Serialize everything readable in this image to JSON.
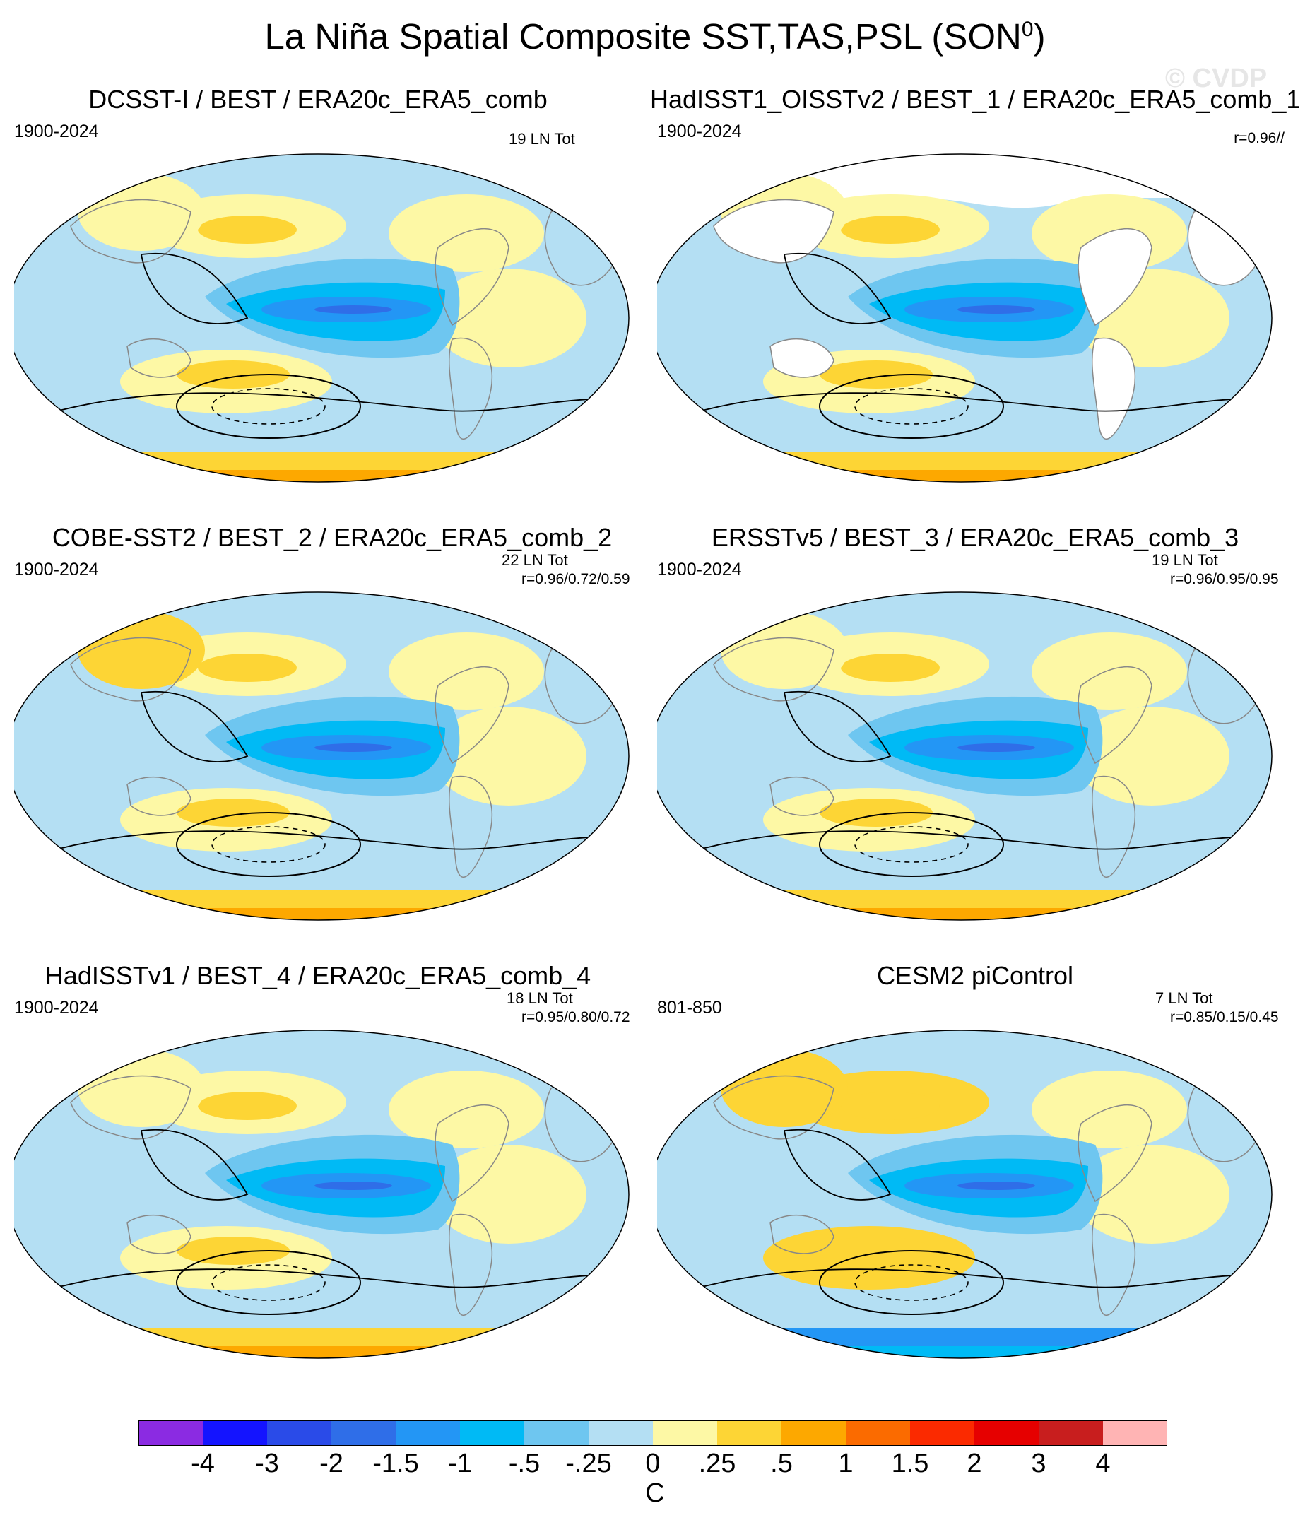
{
  "title": "La Niña Spatial Composite SST,TAS,PSL (SON",
  "title_sup": "0",
  "title_end": ")",
  "watermark": "© CVDP",
  "panels": [
    {
      "title": "DCSST-I / BEST / ERA20c_ERA5_comb",
      "years": "1900-2024",
      "count": "19 LN Tot",
      "r": ""
    },
    {
      "title": "HadISST1_OISSTv2 / BEST_1 / ERA20c_ERA5_comb_1",
      "years": "1900-2024",
      "count": "",
      "r": "r=0.96//"
    },
    {
      "title": "COBE-SST2 / BEST_2 / ERA20c_ERA5_comb_2",
      "years": "1900-2024",
      "count": "22 LN Tot",
      "r": "r=0.96/0.72/0.59"
    },
    {
      "title": "ERSSTv5 / BEST_3 / ERA20c_ERA5_comb_3",
      "years": "1900-2024",
      "count": "19 LN Tot",
      "r": "r=0.96/0.95/0.95"
    },
    {
      "title": "HadISSTv1 / BEST_4 / ERA20c_ERA5_comb_4",
      "years": "1900-2024",
      "count": "18 LN Tot",
      "r": "r=0.95/0.80/0.72"
    },
    {
      "title": "CESM2 piControl",
      "years": "801-850",
      "count": "7 LN Tot",
      "r": "r=0.85/0.15/0.45"
    }
  ],
  "colorbar": {
    "colors": [
      "#8b2be2",
      "#1414ff",
      "#2a4be8",
      "#2f6ee8",
      "#2396f5",
      "#00baf5",
      "#6ec6f0",
      "#b4dff3",
      "#fdf8a5",
      "#fdd535",
      "#fda800",
      "#fb6b00",
      "#fb2a00",
      "#e60000",
      "#c81e1e",
      "#ffb4b4"
    ],
    "labels": [
      "-4",
      "-3",
      "-2",
      "-1.5",
      "-1",
      "-.5",
      "-.25",
      "0",
      ".25",
      ".5",
      "1",
      "1.5",
      "2",
      "3",
      "4"
    ],
    "units": "C"
  }
}
